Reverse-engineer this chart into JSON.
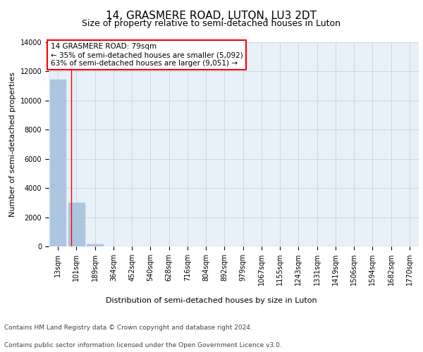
{
  "title": "14, GRASMERE ROAD, LUTON, LU3 2DT",
  "subtitle": "Size of property relative to semi-detached houses in Luton",
  "xlabel": "Distribution of semi-detached houses by size in Luton",
  "ylabel": "Number of semi-detached properties",
  "bar_values": [
    11450,
    3000,
    150,
    0,
    0,
    0,
    0,
    0,
    0,
    0,
    0,
    0,
    0,
    0,
    0,
    0,
    0,
    0,
    0,
    0
  ],
  "bar_labels": [
    "13sqm",
    "101sqm",
    "189sqm",
    "364sqm",
    "452sqm",
    "540sqm",
    "628sqm",
    "716sqm",
    "804sqm",
    "892sqm",
    "979sqm",
    "1067sqm",
    "1155sqm",
    "1243sqm",
    "1331sqm",
    "1419sqm",
    "1506sqm",
    "1594sqm",
    "1682sqm",
    "1770sqm"
  ],
  "bar_color": "#adc6e0",
  "grid_color": "#c8d8e8",
  "background_color": "#e8f0f8",
  "ylim": [
    0,
    14000
  ],
  "red_line_x": 0.72,
  "annotation_text": "14 GRASMERE ROAD: 79sqm\n← 35% of semi-detached houses are smaller (5,092)\n63% of semi-detached houses are larger (9,051) →",
  "footer_line1": "Contains HM Land Registry data © Crown copyright and database right 2024.",
  "footer_line2": "Contains public sector information licensed under the Open Government Licence v3.0.",
  "title_fontsize": 11,
  "subtitle_fontsize": 9,
  "axis_label_fontsize": 8,
  "tick_fontsize": 7,
  "annotation_fontsize": 7.5,
  "footer_fontsize": 6.5,
  "yticks": [
    0,
    2000,
    4000,
    6000,
    8000,
    10000,
    12000,
    14000
  ]
}
